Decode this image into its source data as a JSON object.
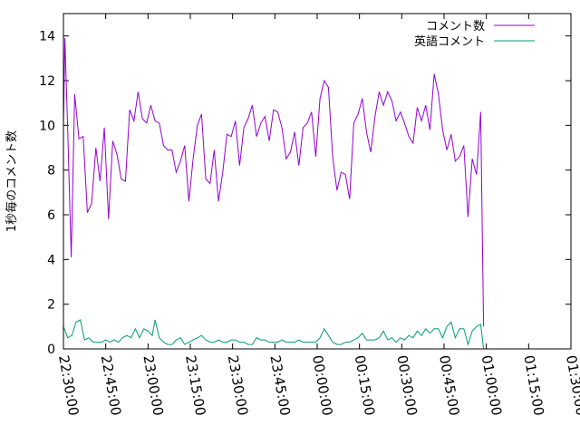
{
  "chart_data": {
    "type": "line",
    "title": "",
    "xlabel": "",
    "ylabel": "1秒毎のコメント数",
    "xlim": [
      "22:30:00",
      "01:30:00"
    ],
    "ylim": [
      0,
      15
    ],
    "x_ticks": [
      "22:30:00",
      "22:45:00",
      "23:00:00",
      "23:15:00",
      "23:30:00",
      "23:45:00",
      "00:00:00",
      "00:15:00",
      "00:30:00",
      "00:45:00",
      "01:00:00",
      "01:15:00",
      "01:30:00"
    ],
    "y_ticks": [
      "0",
      "2",
      "4",
      "6",
      "8",
      "10",
      "12",
      "14"
    ],
    "grid": false,
    "legend_position": "top-right",
    "series": [
      {
        "name": "コメント数",
        "color": "#9400d3",
        "points": [
          [
            "22:30:00",
            10.0
          ],
          [
            "22:30:30",
            13.9
          ],
          [
            "22:31:30",
            9.8
          ],
          [
            "22:32:45",
            4.1
          ],
          [
            "22:34:00",
            11.4
          ],
          [
            "22:35:30",
            9.4
          ],
          [
            "22:37:00",
            9.5
          ],
          [
            "22:38:30",
            6.1
          ],
          [
            "22:40:00",
            6.5
          ],
          [
            "22:41:30",
            9.0
          ],
          [
            "22:43:00",
            7.5
          ],
          [
            "22:44:30",
            9.9
          ],
          [
            "22:46:00",
            5.8
          ],
          [
            "22:47:30",
            9.3
          ],
          [
            "22:49:00",
            8.7
          ],
          [
            "22:50:30",
            7.6
          ],
          [
            "22:52:00",
            7.5
          ],
          [
            "22:53:30",
            10.7
          ],
          [
            "22:55:00",
            10.2
          ],
          [
            "22:56:30",
            11.5
          ],
          [
            "22:58:00",
            10.3
          ],
          [
            "22:59:30",
            10.1
          ],
          [
            "23:01:00",
            10.9
          ],
          [
            "23:02:30",
            10.2
          ],
          [
            "23:04:00",
            10.1
          ],
          [
            "23:05:30",
            9.1
          ],
          [
            "23:07:00",
            8.9
          ],
          [
            "23:08:30",
            8.9
          ],
          [
            "23:10:00",
            7.9
          ],
          [
            "23:11:30",
            8.4
          ],
          [
            "23:13:00",
            9.1
          ],
          [
            "23:14:30",
            6.6
          ],
          [
            "23:16:00",
            8.5
          ],
          [
            "23:17:30",
            10.0
          ],
          [
            "23:19:00",
            10.5
          ],
          [
            "23:20:30",
            7.6
          ],
          [
            "23:22:00",
            7.4
          ],
          [
            "23:23:30",
            8.9
          ],
          [
            "23:25:00",
            6.6
          ],
          [
            "23:26:30",
            7.9
          ],
          [
            "23:28:00",
            9.6
          ],
          [
            "23:29:30",
            9.5
          ],
          [
            "23:31:00",
            10.2
          ],
          [
            "23:32:30",
            8.2
          ],
          [
            "23:34:00",
            9.9
          ],
          [
            "23:35:30",
            10.3
          ],
          [
            "23:37:00",
            10.9
          ],
          [
            "23:38:30",
            9.5
          ],
          [
            "23:40:00",
            10.1
          ],
          [
            "23:41:30",
            10.4
          ],
          [
            "23:43:00",
            9.3
          ],
          [
            "23:44:30",
            10.7
          ],
          [
            "23:46:00",
            10.6
          ],
          [
            "23:47:30",
            9.9
          ],
          [
            "23:49:00",
            8.5
          ],
          [
            "23:50:30",
            8.8
          ],
          [
            "23:52:00",
            9.7
          ],
          [
            "23:53:30",
            8.2
          ],
          [
            "23:55:00",
            9.9
          ],
          [
            "23:56:30",
            10.1
          ],
          [
            "23:58:00",
            10.6
          ],
          [
            "23:59:30",
            8.6
          ],
          [
            "00:01:00",
            11.2
          ],
          [
            "00:02:30",
            12.0
          ],
          [
            "00:04:00",
            11.7
          ],
          [
            "00:05:30",
            8.6
          ],
          [
            "00:07:00",
            7.1
          ],
          [
            "00:08:30",
            7.9
          ],
          [
            "00:10:00",
            7.8
          ],
          [
            "00:11:30",
            6.7
          ],
          [
            "00:13:00",
            10.1
          ],
          [
            "00:14:30",
            10.5
          ],
          [
            "00:16:00",
            11.2
          ],
          [
            "00:17:30",
            9.7
          ],
          [
            "00:19:00",
            8.8
          ],
          [
            "00:20:30",
            10.4
          ],
          [
            "00:22:00",
            11.5
          ],
          [
            "00:23:30",
            10.9
          ],
          [
            "00:25:00",
            11.5
          ],
          [
            "00:26:30",
            11.1
          ],
          [
            "00:28:00",
            10.2
          ],
          [
            "00:29:30",
            10.6
          ],
          [
            "00:31:00",
            10.1
          ],
          [
            "00:32:30",
            9.5
          ],
          [
            "00:34:00",
            9.2
          ],
          [
            "00:35:30",
            10.8
          ],
          [
            "00:37:00",
            10.2
          ],
          [
            "00:38:30",
            10.9
          ],
          [
            "00:40:00",
            9.8
          ],
          [
            "00:41:30",
            12.3
          ],
          [
            "00:43:00",
            11.4
          ],
          [
            "00:44:30",
            9.8
          ],
          [
            "00:46:00",
            8.9
          ],
          [
            "00:47:30",
            9.6
          ],
          [
            "00:49:00",
            8.4
          ],
          [
            "00:50:30",
            8.6
          ],
          [
            "00:52:00",
            9.1
          ],
          [
            "00:53:30",
            5.9
          ],
          [
            "00:55:00",
            8.5
          ],
          [
            "00:56:30",
            7.8
          ],
          [
            "00:58:00",
            10.6
          ],
          [
            "00:59:00",
            1.0
          ]
        ]
      },
      {
        "name": "英語コメント",
        "color": "#009e73",
        "points": [
          [
            "22:30:00",
            1.0
          ],
          [
            "22:31:30",
            0.5
          ],
          [
            "22:33:00",
            0.6
          ],
          [
            "22:34:30",
            1.2
          ],
          [
            "22:36:00",
            1.3
          ],
          [
            "22:37:30",
            0.4
          ],
          [
            "22:39:00",
            0.5
          ],
          [
            "22:40:30",
            0.3
          ],
          [
            "22:42:00",
            0.3
          ],
          [
            "22:43:30",
            0.3
          ],
          [
            "22:45:00",
            0.4
          ],
          [
            "22:46:30",
            0.3
          ],
          [
            "22:48:00",
            0.4
          ],
          [
            "22:49:30",
            0.3
          ],
          [
            "22:51:00",
            0.5
          ],
          [
            "22:52:30",
            0.6
          ],
          [
            "22:54:00",
            0.5
          ],
          [
            "22:55:30",
            0.9
          ],
          [
            "22:57:00",
            0.5
          ],
          [
            "22:58:30",
            0.9
          ],
          [
            "23:00:00",
            0.8
          ],
          [
            "23:01:30",
            0.6
          ],
          [
            "23:02:30",
            1.3
          ],
          [
            "23:04:00",
            0.5
          ],
          [
            "23:05:30",
            0.3
          ],
          [
            "23:07:00",
            0.2
          ],
          [
            "23:08:30",
            0.2
          ],
          [
            "23:10:00",
            0.4
          ],
          [
            "23:11:30",
            0.5
          ],
          [
            "23:13:00",
            0.2
          ],
          [
            "23:14:30",
            0.3
          ],
          [
            "23:16:00",
            0.4
          ],
          [
            "23:17:30",
            0.5
          ],
          [
            "23:19:00",
            0.6
          ],
          [
            "23:20:30",
            0.4
          ],
          [
            "23:22:00",
            0.3
          ],
          [
            "23:23:30",
            0.3
          ],
          [
            "23:25:00",
            0.4
          ],
          [
            "23:26:30",
            0.3
          ],
          [
            "23:28:00",
            0.3
          ],
          [
            "23:29:30",
            0.4
          ],
          [
            "23:31:00",
            0.4
          ],
          [
            "23:32:30",
            0.3
          ],
          [
            "23:34:00",
            0.3
          ],
          [
            "23:35:30",
            0.2
          ],
          [
            "23:37:00",
            0.2
          ],
          [
            "23:38:30",
            0.5
          ],
          [
            "23:40:00",
            0.4
          ],
          [
            "23:41:30",
            0.4
          ],
          [
            "23:43:00",
            0.3
          ],
          [
            "23:44:30",
            0.3
          ],
          [
            "23:46:00",
            0.3
          ],
          [
            "23:47:30",
            0.4
          ],
          [
            "23:49:00",
            0.3
          ],
          [
            "23:50:30",
            0.3
          ],
          [
            "23:52:00",
            0.3
          ],
          [
            "23:53:30",
            0.4
          ],
          [
            "23:55:00",
            0.3
          ],
          [
            "23:56:30",
            0.3
          ],
          [
            "23:58:00",
            0.3
          ],
          [
            "23:59:30",
            0.3
          ],
          [
            "00:01:00",
            0.5
          ],
          [
            "00:02:30",
            0.9
          ],
          [
            "00:04:00",
            0.6
          ],
          [
            "00:05:30",
            0.3
          ],
          [
            "00:07:00",
            0.2
          ],
          [
            "00:08:30",
            0.2
          ],
          [
            "00:10:00",
            0.3
          ],
          [
            "00:11:30",
            0.3
          ],
          [
            "00:13:00",
            0.4
          ],
          [
            "00:14:30",
            0.5
          ],
          [
            "00:16:00",
            0.7
          ],
          [
            "00:17:30",
            0.4
          ],
          [
            "00:19:00",
            0.4
          ],
          [
            "00:20:30",
            0.4
          ],
          [
            "00:22:00",
            0.5
          ],
          [
            "00:23:30",
            0.8
          ],
          [
            "00:25:00",
            0.4
          ],
          [
            "00:26:30",
            0.5
          ],
          [
            "00:28:00",
            0.3
          ],
          [
            "00:29:30",
            0.5
          ],
          [
            "00:31:00",
            0.4
          ],
          [
            "00:32:30",
            0.6
          ],
          [
            "00:34:00",
            0.5
          ],
          [
            "00:35:30",
            0.8
          ],
          [
            "00:37:00",
            0.6
          ],
          [
            "00:38:30",
            0.9
          ],
          [
            "00:40:00",
            0.7
          ],
          [
            "00:41:30",
            0.9
          ],
          [
            "00:43:00",
            0.9
          ],
          [
            "00:44:30",
            0.5
          ],
          [
            "00:46:00",
            1.0
          ],
          [
            "00:47:30",
            1.2
          ],
          [
            "00:49:00",
            0.5
          ],
          [
            "00:50:30",
            0.9
          ],
          [
            "00:52:00",
            0.9
          ],
          [
            "00:53:30",
            0.2
          ],
          [
            "00:55:00",
            0.8
          ],
          [
            "00:56:30",
            1.0
          ],
          [
            "00:58:00",
            1.1
          ],
          [
            "00:59:00",
            0.0
          ]
        ]
      }
    ]
  }
}
